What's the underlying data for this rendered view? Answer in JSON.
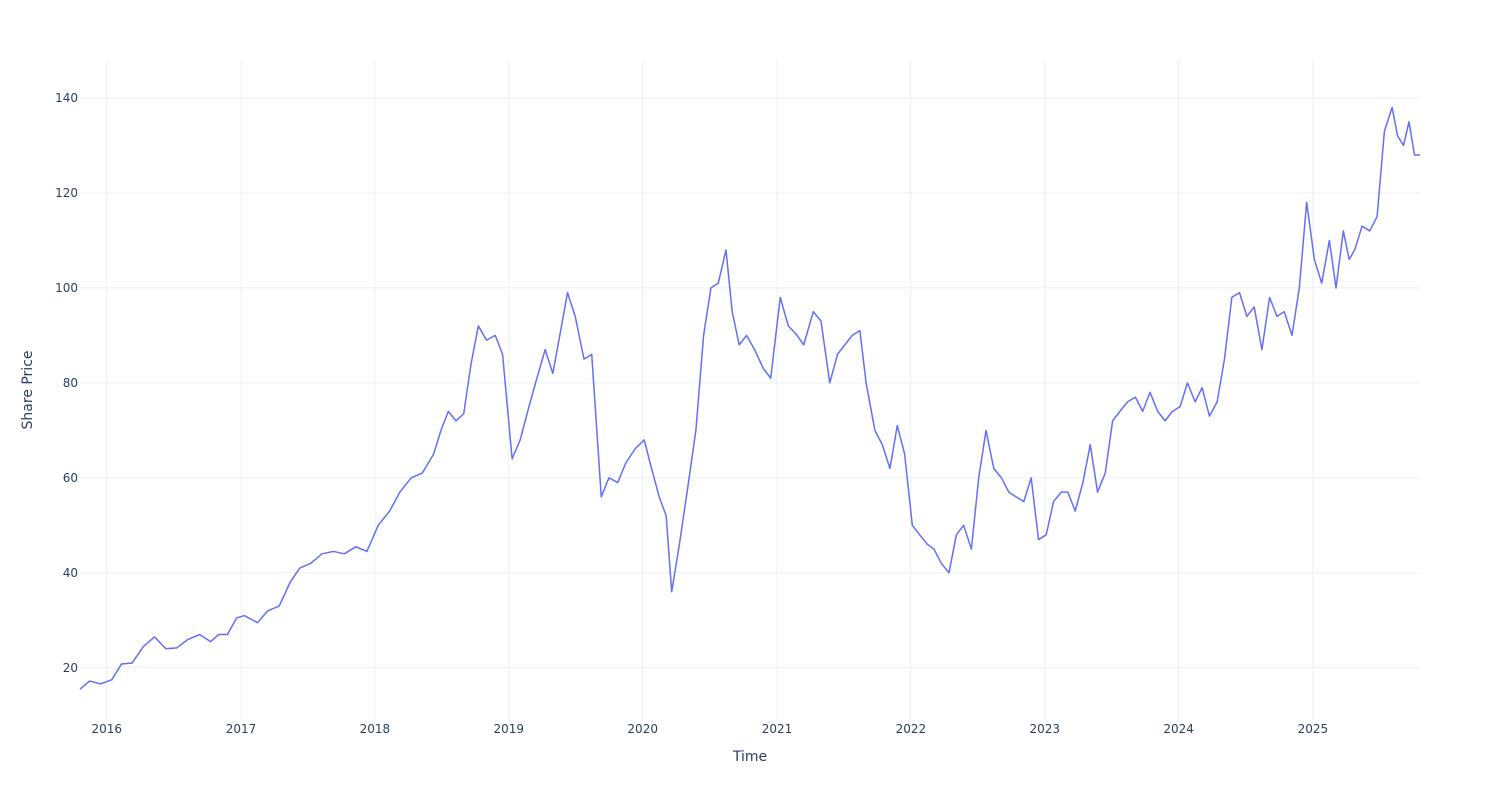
{
  "chart_data": {
    "type": "line",
    "title": "",
    "xlabel": "Time",
    "ylabel": "Share Price",
    "x_type": "date",
    "xlim": [
      "2015-10-20",
      "2025-10-20"
    ],
    "ylim": [
      9,
      148
    ],
    "x_ticks": [
      {
        "value": "2016-01-01",
        "label": "2016"
      },
      {
        "value": "2017-01-01",
        "label": "2017"
      },
      {
        "value": "2018-01-01",
        "label": "2018"
      },
      {
        "value": "2019-01-01",
        "label": "2019"
      },
      {
        "value": "2020-01-01",
        "label": "2020"
      },
      {
        "value": "2021-01-01",
        "label": "2021"
      },
      {
        "value": "2022-01-01",
        "label": "2022"
      },
      {
        "value": "2023-01-01",
        "label": "2023"
      },
      {
        "value": "2024-01-01",
        "label": "2024"
      },
      {
        "value": "2025-01-01",
        "label": "2025"
      }
    ],
    "y_ticks": [
      {
        "value": 20,
        "label": "20"
      },
      {
        "value": 40,
        "label": "40"
      },
      {
        "value": 60,
        "label": "60"
      },
      {
        "value": 80,
        "label": "80"
      },
      {
        "value": 100,
        "label": "100"
      },
      {
        "value": 120,
        "label": "120"
      },
      {
        "value": 140,
        "label": "140"
      }
    ],
    "grid": true,
    "legend": "none",
    "series": [
      {
        "color": "#636efa",
        "x": [
          "2015-10-20",
          "2015-11-15",
          "2015-12-15",
          "2016-01-15",
          "2016-02-10",
          "2016-03-10",
          "2016-04-10",
          "2016-05-10",
          "2016-06-10",
          "2016-07-10",
          "2016-08-10",
          "2016-09-10",
          "2016-10-10",
          "2016-11-01",
          "2016-11-25",
          "2016-12-20",
          "2017-01-10",
          "2017-02-15",
          "2017-03-15",
          "2017-04-15",
          "2017-05-15",
          "2017-06-10",
          "2017-07-10",
          "2017-08-10",
          "2017-09-10",
          "2017-10-10",
          "2017-11-10",
          "2017-12-10",
          "2018-01-10",
          "2018-02-10",
          "2018-03-10",
          "2018-04-10",
          "2018-05-10",
          "2018-06-10",
          "2018-06-30",
          "2018-07-20",
          "2018-08-10",
          "2018-08-31",
          "2018-09-20",
          "2018-10-10",
          "2018-11-01",
          "2018-11-25",
          "2018-12-15",
          "2019-01-10",
          "2019-02-01",
          "2019-02-25",
          "2019-03-15",
          "2019-04-10",
          "2019-05-01",
          "2019-05-20",
          "2019-06-10",
          "2019-07-01",
          "2019-07-25",
          "2019-08-15",
          "2019-08-22",
          "2019-09-10",
          "2019-10-01",
          "2019-10-25",
          "2019-11-15",
          "2019-12-10",
          "2020-01-05",
          "2020-01-25",
          "2020-02-15",
          "2020-03-05",
          "2020-03-20",
          "2020-04-10",
          "2020-05-01",
          "2020-05-25",
          "2020-06-15",
          "2020-07-05",
          "2020-07-25",
          "2020-08-15",
          "2020-09-01",
          "2020-09-20",
          "2020-10-10",
          "2020-11-01",
          "2020-11-25",
          "2020-12-15",
          "2021-01-10",
          "2021-02-01",
          "2021-02-25",
          "2021-03-15",
          "2021-04-10",
          "2021-05-01",
          "2021-05-25",
          "2021-06-15",
          "2021-07-05",
          "2021-07-25",
          "2021-08-15",
          "2021-09-01",
          "2021-09-25",
          "2021-10-15",
          "2021-11-05",
          "2021-11-25",
          "2021-12-15",
          "2022-01-05",
          "2022-01-25",
          "2022-02-15",
          "2022-03-05",
          "2022-03-25",
          "2022-04-15",
          "2022-05-05",
          "2022-05-25",
          "2022-06-15",
          "2022-07-05",
          "2022-07-25",
          "2022-08-15",
          "2022-09-05",
          "2022-09-25",
          "2022-10-15",
          "2022-11-05",
          "2022-11-25",
          "2022-12-15",
          "2023-01-05",
          "2023-01-25",
          "2023-02-15",
          "2023-03-05",
          "2023-03-25",
          "2023-04-15",
          "2023-05-05",
          "2023-05-25",
          "2023-06-15",
          "2023-07-05",
          "2023-07-25",
          "2023-08-15",
          "2023-09-05",
          "2023-09-25",
          "2023-10-15",
          "2023-11-05",
          "2023-11-25",
          "2023-12-15",
          "2024-01-05",
          "2024-01-25",
          "2024-02-15",
          "2024-03-05",
          "2024-03-25",
          "2024-04-15",
          "2024-05-05",
          "2024-05-25",
          "2024-06-15",
          "2024-07-05",
          "2024-07-25",
          "2024-08-15",
          "2024-09-05",
          "2024-09-25",
          "2024-10-15",
          "2024-11-05",
          "2024-11-25",
          "2024-12-15",
          "2025-01-05",
          "2025-01-25",
          "2025-02-15",
          "2025-03-05",
          "2025-03-25",
          "2025-04-10",
          "2025-04-25",
          "2025-05-15",
          "2025-06-05",
          "2025-06-25",
          "2025-07-15",
          "2025-08-05",
          "2025-08-20",
          "2025-09-05",
          "2025-09-20",
          "2025-10-05",
          "2025-10-20"
        ],
        "y": [
          15.5,
          17.2,
          16.6,
          17.5,
          20.8,
          21.0,
          24.5,
          26.5,
          24.0,
          24.2,
          26.0,
          27.0,
          25.5,
          27.0,
          27.0,
          30.5,
          31.0,
          29.5,
          32.0,
          33.0,
          38.0,
          41.0,
          42.0,
          44.0,
          44.5,
          44.0,
          45.5,
          44.5,
          50.0,
          53.0,
          57.0,
          60.0,
          61.0,
          65.0,
          70.0,
          74.0,
          72.0,
          73.5,
          84.0,
          92.0,
          89.0,
          90.0,
          86.0,
          64.0,
          68.0,
          75.0,
          80.0,
          87.0,
          82.0,
          90.0,
          99.0,
          94.0,
          85.0,
          86.0,
          78.0,
          56.0,
          60.0,
          59.0,
          63.0,
          66.0,
          68.0,
          62.0,
          56.0,
          52.0,
          36.0,
          46.0,
          57.0,
          70.0,
          90.0,
          100.0,
          101.0,
          108.0,
          95.0,
          88.0,
          90.0,
          87.0,
          83.0,
          81.0,
          98.0,
          92.0,
          90.0,
          88.0,
          95.0,
          93.0,
          80.0,
          86.0,
          88.0,
          90.0,
          91.0,
          80.0,
          70.0,
          67.0,
          62.0,
          71.0,
          65.0,
          50.0,
          48.0,
          46.0,
          45.0,
          42.0,
          40.0,
          48.0,
          50.0,
          45.0,
          60.0,
          70.0,
          62.0,
          60.0,
          57.0,
          56.0,
          55.0,
          60.0,
          47.0,
          48.0,
          55.0,
          57.0,
          57.0,
          53.0,
          59.0,
          67.0,
          57.0,
          61.0,
          72.0,
          74.0,
          76.0,
          77.0,
          74.0,
          78.0,
          74.0,
          72.0,
          74.0,
          75.0,
          80.0,
          76.0,
          79.0,
          73.0,
          76.0,
          85.0,
          98.0,
          99.0,
          94.0,
          96.0,
          87.0,
          98.0,
          94.0,
          95.0,
          90.0,
          100.0,
          118.0,
          106.0,
          101.0,
          110.0,
          100.0,
          112.0,
          106.0,
          108.0,
          113.0,
          112.0,
          115.0,
          133.0,
          138.0,
          132.0,
          130.0,
          135.0,
          128.0,
          128.0
        ]
      }
    ]
  }
}
